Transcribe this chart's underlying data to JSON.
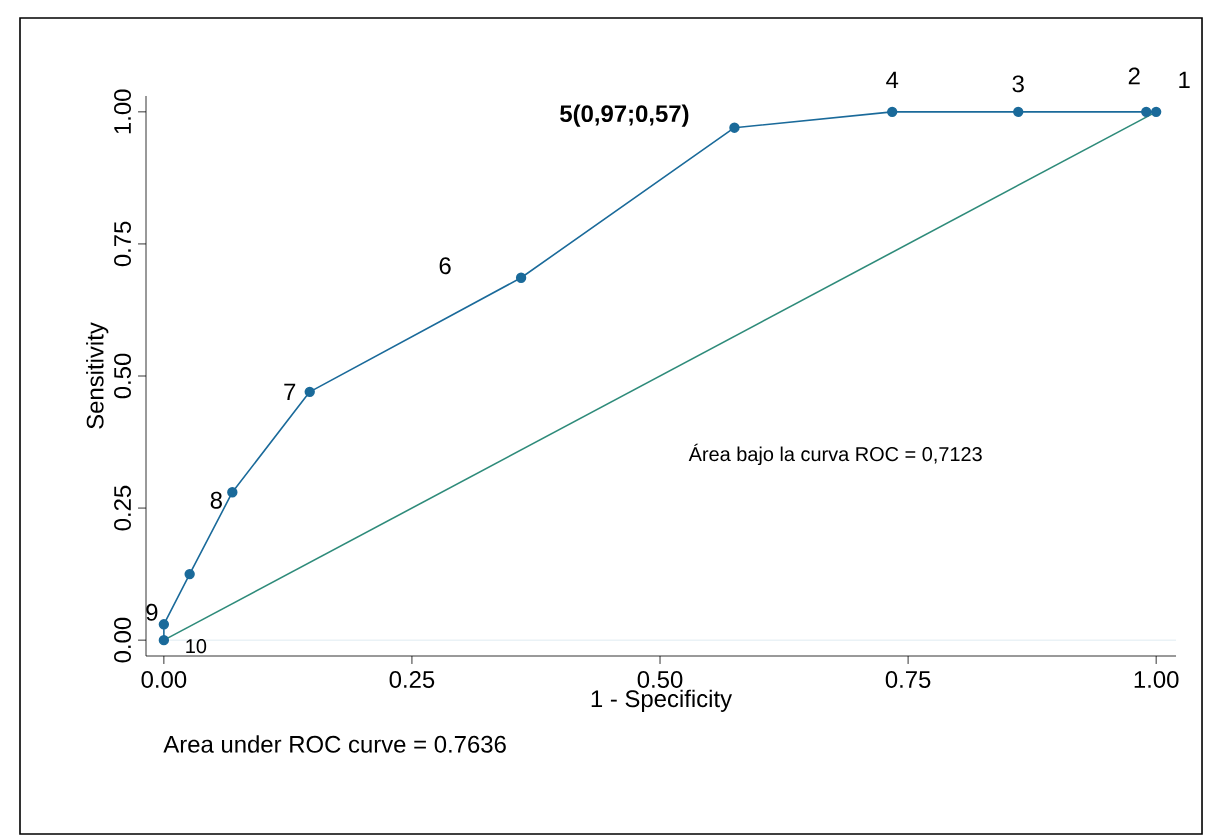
{
  "chart_data": {
    "type": "line",
    "xlabel": "1 - Specificity",
    "ylabel": "Sensitivity",
    "xlim": [
      -0.018,
      1.02
    ],
    "ylim": [
      -0.03,
      1.03
    ],
    "xticks": [
      {
        "value": 0,
        "label": "0.00"
      },
      {
        "value": 0.25,
        "label": "0.25"
      },
      {
        "value": 0.5,
        "label": "0.50"
      },
      {
        "value": 0.75,
        "label": "0.75"
      },
      {
        "value": 1,
        "label": "1.00"
      }
    ],
    "yticks": [
      {
        "value": 0,
        "label": "0.00"
      },
      {
        "value": 0.25,
        "label": "0.25"
      },
      {
        "value": 0.5,
        "label": "0.50"
      },
      {
        "value": 0.75,
        "label": "0.75"
      },
      {
        "value": 1,
        "label": "1.00"
      }
    ],
    "grid": false,
    "marker": "circle",
    "series": [
      {
        "color": "#1a6a9a",
        "x": [
          0,
          0,
          0.026,
          0.069,
          0.147,
          0.36,
          0.575,
          0.734,
          0.861,
          0.99,
          1
        ],
        "values": [
          0,
          0.03,
          0.125,
          0.28,
          0.47,
          0.686,
          0.97,
          1,
          1,
          1,
          1
        ]
      },
      {
        "color": "#2e8b7a",
        "marker": "none",
        "x": [
          0,
          1
        ],
        "values": [
          0,
          1
        ]
      }
    ],
    "ref_lines": [
      {
        "axis": "y",
        "value": 0,
        "color": "#d6e6ee"
      }
    ],
    "annotations": [
      {
        "text": "1",
        "x": 1,
        "y": 1
      },
      {
        "text": "2",
        "x": 0.99,
        "y": 1
      },
      {
        "text": "3",
        "x": 0.861,
        "y": 1
      },
      {
        "text": "4",
        "x": 0.734,
        "y": 1
      },
      {
        "text": "**5(0,97;0,57)**",
        "x": 0.575,
        "y": 0.97
      },
      {
        "text": "6",
        "x": 0.36,
        "y": 0.686
      },
      {
        "text": "7",
        "x": 0.147,
        "y": 0.47
      },
      {
        "text": "8",
        "x": 0.069,
        "y": 0.28
      },
      {
        "text": "9",
        "x": 0,
        "y": 0.03
      },
      {
        "text": "10",
        "x": 0,
        "y": 0
      },
      "Área bajo la curva ROC = 0,7123",
      "Area under ROC curve = 0.7636"
    ]
  }
}
